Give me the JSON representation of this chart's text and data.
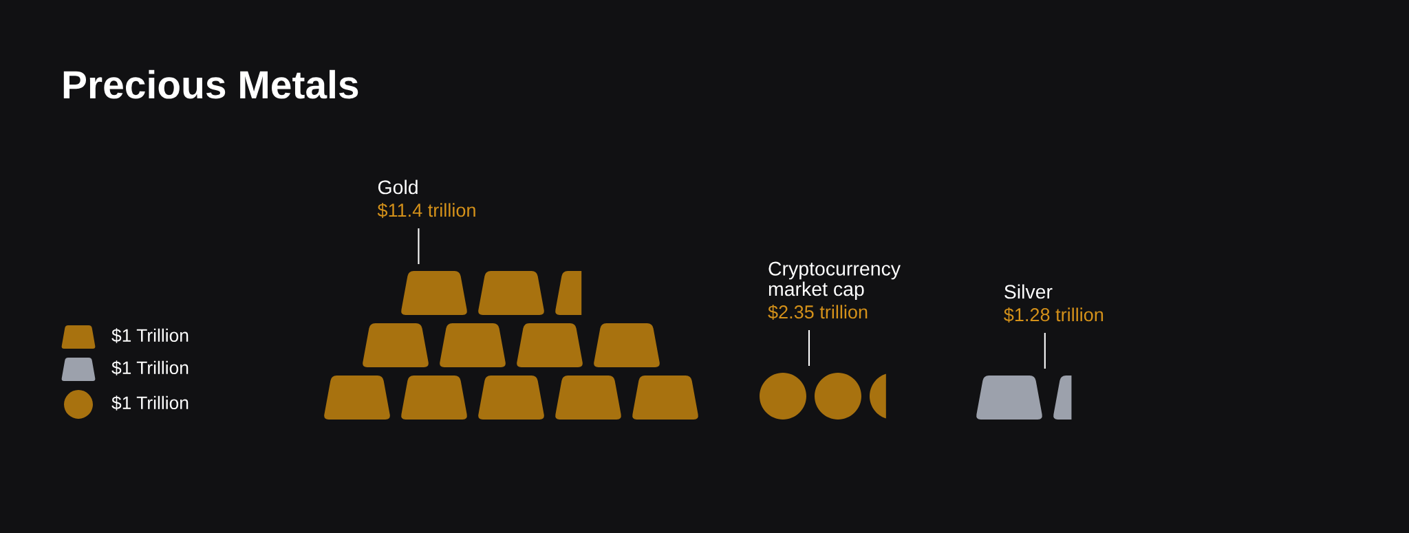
{
  "chart_data": {
    "type": "other",
    "title": "Precious Metals",
    "categories": [
      "Gold",
      "Cryptocurrency\nmarket cap",
      "Silver"
    ],
    "series": [
      {
        "name": "$1 Trillion",
        "color": "#a8720f",
        "marker": "square",
        "values": [
          11.4,
          null,
          null
        ],
        "value_labels": [
          "$11.4 trillion",
          null,
          null
        ]
      },
      {
        "name": "$1 Trillion",
        "color": "#9ca1ac",
        "marker": "square",
        "values": [
          null,
          null,
          1.28
        ],
        "value_labels": [
          null,
          null,
          "$1.28 trillion"
        ]
      },
      {
        "name": "$1 Trillion",
        "color": "#a8720f",
        "marker": "circle",
        "values": [
          null,
          2.35,
          null
        ],
        "value_labels": [
          null,
          "$2.35 trillion",
          null
        ]
      }
    ],
    "legend": "left"
  }
}
